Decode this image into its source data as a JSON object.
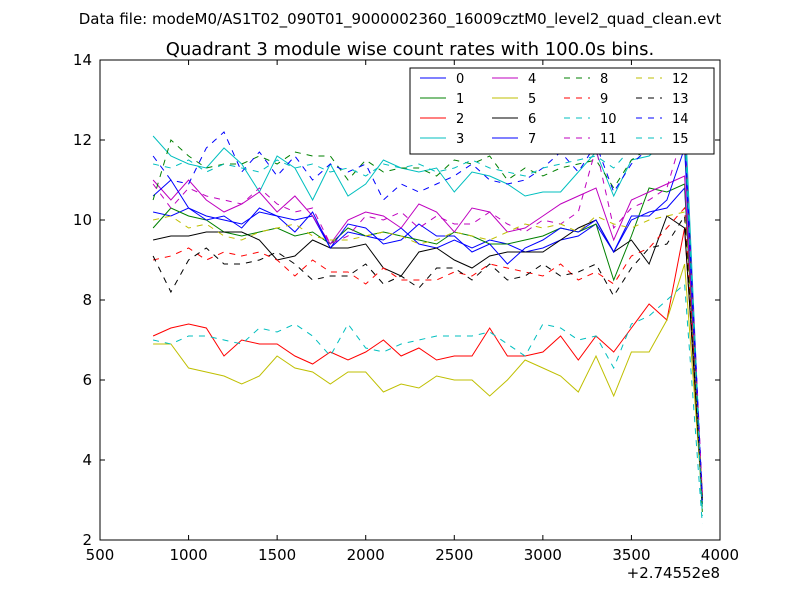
{
  "figure": {
    "suptitle": "Data file: modeM0/AS1T02_090T01_9000002360_16009cztM0_level2_quad_clean.evt"
  },
  "chart_data": {
    "type": "line",
    "title": "Quadrant 3 module wise count rates with 100.0s bins.",
    "xlabel": "",
    "ylabel": "",
    "x_offset_label": "+2.74552e8",
    "xlim": [
      500,
      4000
    ],
    "ylim": [
      2,
      14
    ],
    "xticks": [
      500,
      1000,
      1500,
      2000,
      2500,
      3000,
      3500,
      4000
    ],
    "yticks": [
      2,
      4,
      6,
      8,
      10,
      12,
      14
    ],
    "grid": false,
    "legend_position": "top-right",
    "legend_columns": 4,
    "x": [
      800,
      900,
      1000,
      1100,
      1200,
      1300,
      1400,
      1500,
      1600,
      1700,
      1800,
      1900,
      2000,
      2100,
      2200,
      2300,
      2400,
      2500,
      2600,
      2700,
      2800,
      2900,
      3000,
      3100,
      3200,
      3300,
      3400,
      3500,
      3600,
      3700,
      3800,
      3900
    ],
    "series": [
      {
        "name": "0",
        "color": "#0000ff",
        "dash": "solid",
        "values": [
          10.2,
          10.1,
          10.3,
          10.1,
          10.0,
          9.9,
          10.2,
          10.1,
          10.0,
          10.1,
          9.3,
          9.7,
          9.6,
          9.5,
          9.8,
          9.4,
          9.3,
          9.5,
          9.3,
          9.5,
          9.4,
          9.2,
          9.3,
          9.5,
          9.6,
          9.9,
          9.2,
          10.0,
          10.2,
          10.3,
          10.8,
          3.0
        ]
      },
      {
        "name": "1",
        "color": "#008000",
        "dash": "solid",
        "values": [
          9.8,
          10.3,
          10.1,
          10.0,
          9.7,
          9.6,
          9.7,
          9.8,
          9.6,
          9.7,
          9.4,
          9.8,
          9.6,
          9.7,
          9.6,
          9.5,
          9.4,
          9.7,
          9.6,
          9.4,
          9.4,
          9.5,
          9.6,
          9.8,
          9.7,
          9.9,
          8.5,
          9.6,
          10.8,
          10.7,
          10.9,
          2.7
        ]
      },
      {
        "name": "2",
        "color": "#ff0000",
        "dash": "solid",
        "values": [
          7.1,
          7.3,
          7.4,
          7.3,
          6.6,
          7.0,
          6.9,
          6.9,
          6.6,
          6.4,
          6.7,
          6.5,
          6.7,
          7.0,
          6.6,
          6.8,
          6.5,
          6.6,
          6.6,
          7.3,
          6.6,
          6.6,
          6.7,
          7.1,
          6.5,
          7.1,
          6.7,
          7.3,
          7.9,
          7.5,
          9.8,
          3.1
        ]
      },
      {
        "name": "3",
        "color": "#00bfbf",
        "dash": "solid",
        "values": [
          12.1,
          11.6,
          11.4,
          11.3,
          11.8,
          11.4,
          10.7,
          11.6,
          11.3,
          10.5,
          11.4,
          10.6,
          10.9,
          11.5,
          11.3,
          11.2,
          11.3,
          10.7,
          11.2,
          11.1,
          10.9,
          10.6,
          10.7,
          10.7,
          11.2,
          11.7,
          10.6,
          11.5,
          11.6,
          12.0,
          12.9,
          2.9
        ]
      },
      {
        "name": "4",
        "color": "#bf00bf",
        "dash": "solid",
        "values": [
          11.0,
          10.5,
          11.0,
          10.5,
          10.2,
          10.4,
          10.7,
          10.2,
          10.6,
          10.1,
          9.4,
          10.0,
          10.2,
          10.1,
          9.8,
          10.4,
          10.2,
          9.7,
          10.3,
          10.2,
          9.7,
          9.8,
          10.1,
          10.4,
          10.6,
          10.8,
          9.5,
          10.5,
          10.7,
          10.9,
          11.1,
          3.1
        ]
      },
      {
        "name": "5",
        "color": "#bfbf00",
        "dash": "solid",
        "values": [
          6.9,
          6.9,
          6.3,
          6.2,
          6.1,
          5.9,
          6.1,
          6.6,
          6.3,
          6.2,
          5.9,
          6.2,
          6.2,
          5.7,
          5.9,
          5.8,
          6.1,
          6.0,
          6.0,
          5.6,
          6.0,
          6.5,
          6.3,
          6.1,
          5.7,
          6.6,
          5.6,
          6.7,
          6.7,
          7.5,
          8.9,
          3.0
        ]
      },
      {
        "name": "6",
        "color": "#000000",
        "dash": "solid",
        "values": [
          9.5,
          9.6,
          9.6,
          9.7,
          9.7,
          9.7,
          9.5,
          9.0,
          9.1,
          9.5,
          9.3,
          9.3,
          9.4,
          8.8,
          8.6,
          9.2,
          9.3,
          9.0,
          8.8,
          9.1,
          9.2,
          9.2,
          9.2,
          9.5,
          9.8,
          10.0,
          9.2,
          9.5,
          8.9,
          10.1,
          9.8,
          3.0
        ]
      },
      {
        "name": "7",
        "color": "#0000ff",
        "dash": "solid",
        "values": [
          10.6,
          11.0,
          10.3,
          10.0,
          10.1,
          9.8,
          10.3,
          10.1,
          9.7,
          10.2,
          9.3,
          9.9,
          9.8,
          9.4,
          9.5,
          9.9,
          9.6,
          9.6,
          9.2,
          9.4,
          8.9,
          9.3,
          9.5,
          9.8,
          9.7,
          10.0,
          9.2,
          10.1,
          10.1,
          10.5,
          11.8,
          2.9
        ]
      },
      {
        "name": "8",
        "color": "#008000",
        "dash": "dashed",
        "values": [
          10.5,
          12.0,
          11.6,
          11.3,
          11.4,
          11.4,
          11.6,
          11.4,
          11.7,
          11.6,
          11.6,
          11.0,
          11.5,
          11.2,
          11.3,
          11.3,
          11.1,
          11.5,
          11.4,
          11.6,
          11.0,
          11.3,
          11.1,
          11.3,
          11.4,
          11.5,
          10.8,
          11.5,
          11.8,
          12.2,
          12.1,
          2.8
        ]
      },
      {
        "name": "9",
        "color": "#ff0000",
        "dash": "dashed",
        "values": [
          9.0,
          9.1,
          9.3,
          9.0,
          9.2,
          9.1,
          9.2,
          9.0,
          8.6,
          9.0,
          8.7,
          8.7,
          8.4,
          8.8,
          8.5,
          8.5,
          8.5,
          8.7,
          8.6,
          8.9,
          8.8,
          8.7,
          8.6,
          8.9,
          8.5,
          8.7,
          8.4,
          9.1,
          9.3,
          9.8,
          10.3,
          3.2
        ]
      },
      {
        "name": "10",
        "color": "#00bfbf",
        "dash": "dashed",
        "values": [
          7.0,
          6.9,
          7.1,
          7.1,
          7.0,
          6.9,
          7.3,
          7.2,
          7.4,
          7.1,
          6.6,
          7.4,
          6.8,
          6.7,
          6.9,
          7.0,
          7.1,
          7.1,
          7.1,
          7.2,
          6.9,
          6.6,
          7.4,
          7.3,
          7.0,
          7.1,
          6.3,
          7.4,
          7.6,
          8.0,
          8.4,
          2.4
        ]
      },
      {
        "name": "11",
        "color": "#bf00bf",
        "dash": "dashed",
        "values": [
          10.9,
          10.3,
          10.8,
          10.6,
          10.5,
          10.4,
          10.8,
          10.4,
          10.2,
          10.3,
          9.4,
          9.6,
          10.1,
          10.0,
          10.2,
          9.8,
          10.1,
          9.9,
          9.9,
          10.2,
          9.9,
          9.7,
          10.0,
          9.9,
          10.2,
          11.8,
          9.8,
          10.3,
          10.5,
          10.8,
          12.3,
          3.2
        ]
      },
      {
        "name": "12",
        "color": "#bfbf00",
        "dash": "dashed",
        "values": [
          10.0,
          10.1,
          9.8,
          9.9,
          9.6,
          9.5,
          9.7,
          9.8,
          9.9,
          9.6,
          9.5,
          9.5,
          9.6,
          9.7,
          9.6,
          9.4,
          9.5,
          9.7,
          9.6,
          9.5,
          9.7,
          9.9,
          9.8,
          9.9,
          9.7,
          10.1,
          9.9,
          9.8,
          10.0,
          10.1,
          10.2,
          3.1
        ]
      },
      {
        "name": "13",
        "color": "#000000",
        "dash": "dashed",
        "values": [
          9.1,
          8.2,
          9.0,
          9.3,
          8.9,
          8.9,
          9.0,
          9.2,
          8.9,
          8.5,
          8.6,
          8.6,
          8.9,
          8.4,
          8.6,
          8.3,
          8.8,
          8.8,
          8.5,
          8.9,
          8.5,
          8.6,
          8.9,
          8.6,
          8.7,
          8.9,
          8.1,
          8.8,
          9.3,
          9.4,
          10.1,
          3.0
        ]
      },
      {
        "name": "14",
        "color": "#0000ff",
        "dash": "dashed",
        "values": [
          11.6,
          11.0,
          10.9,
          11.8,
          12.2,
          11.2,
          11.7,
          11.1,
          11.6,
          11.0,
          11.4,
          11.2,
          11.4,
          10.5,
          10.9,
          10.7,
          10.9,
          11.1,
          11.4,
          11.0,
          10.9,
          11.0,
          11.3,
          11.7,
          11.2,
          11.9,
          10.7,
          11.4,
          11.8,
          11.9,
          12.2,
          3.1
        ]
      },
      {
        "name": "15",
        "color": "#00bfbf",
        "dash": "dashed",
        "values": [
          11.4,
          11.3,
          11.5,
          11.2,
          11.4,
          11.3,
          11.2,
          11.5,
          11.3,
          11.4,
          11.2,
          11.3,
          11.1,
          11.4,
          11.3,
          11.4,
          11.2,
          11.3,
          11.5,
          11.3,
          11.2,
          11.1,
          11.3,
          11.4,
          11.5,
          11.6,
          11.3,
          11.8,
          12.2,
          12.4,
          12.3,
          2.6
        ]
      }
    ]
  }
}
